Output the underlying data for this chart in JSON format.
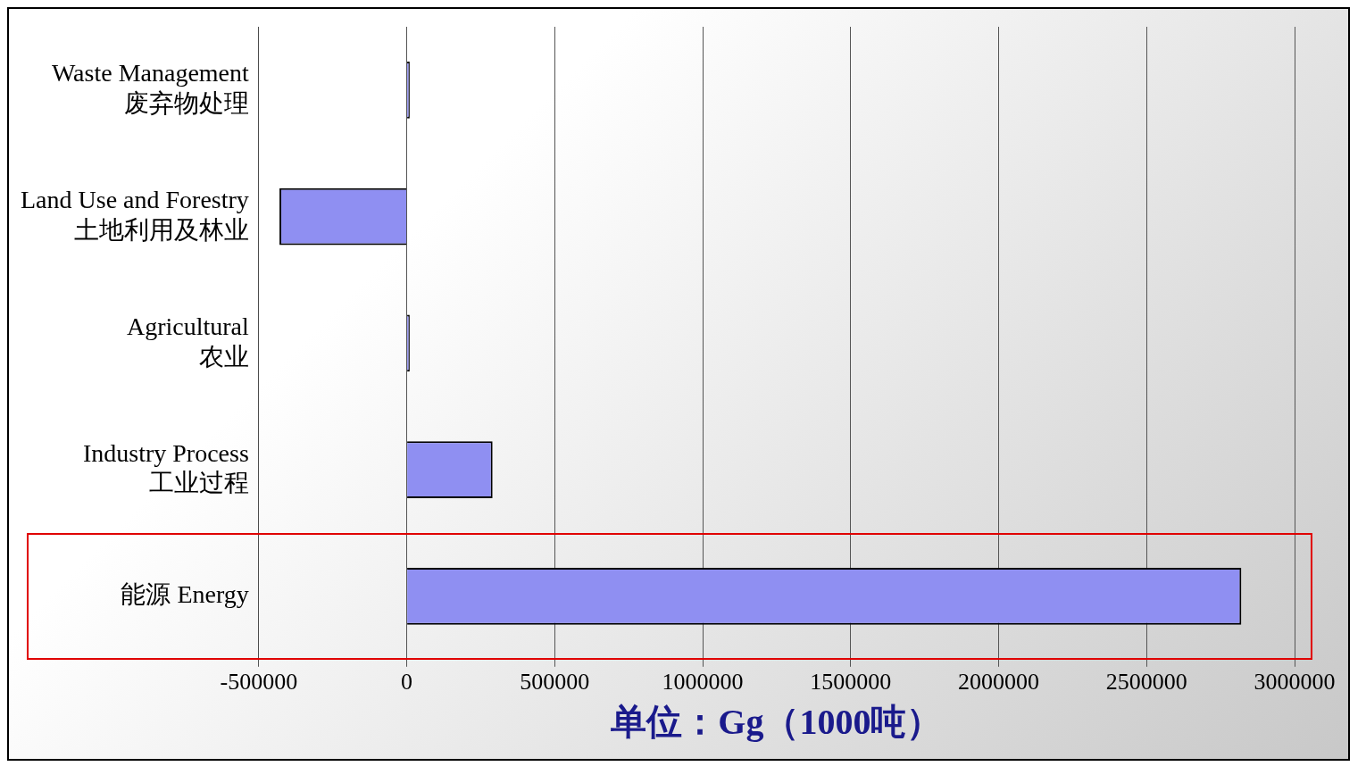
{
  "chart_data": {
    "type": "bar",
    "orientation": "horizontal",
    "categories": [
      "Waste Management\n废弃物处理",
      "Land Use and Forestry\n土地利用及林业",
      "Agricultural\n农业",
      "Industry Process\n工业过程",
      "能源 Energy"
    ],
    "values": [
      10000,
      -430000,
      10000,
      290000,
      2820000
    ],
    "color": "#8f8ff2",
    "xlabel": "单位：Gg（1000吨）",
    "xlim": [
      -500000,
      3000000
    ],
    "xticks": [
      -500000,
      0,
      500000,
      1000000,
      1500000,
      2000000,
      2500000,
      3000000
    ],
    "grid": "x",
    "legend": false
  }
}
